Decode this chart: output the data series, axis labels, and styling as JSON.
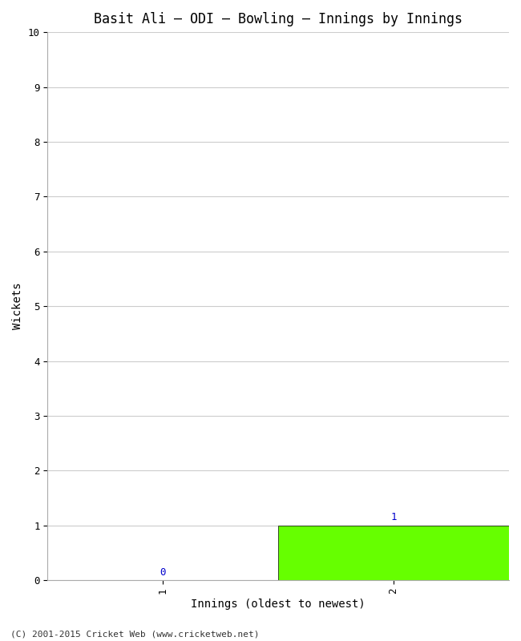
{
  "title": "Basit Ali – ODI – Bowling – Innings by Innings",
  "xlabel": "Innings (oldest to newest)",
  "ylabel": "Wickets",
  "categories": [
    "1",
    "2"
  ],
  "values": [
    0,
    1
  ],
  "bar_color": "#66ff00",
  "ylim": [
    0,
    10
  ],
  "yticks": [
    0,
    1,
    2,
    3,
    4,
    5,
    6,
    7,
    8,
    9,
    10
  ],
  "value_labels": [
    "0",
    "1"
  ],
  "value_label_color": "#0000cc",
  "background_color": "#ffffff",
  "grid_color": "#cccccc",
  "footer": "(C) 2001-2015 Cricket Web (www.cricketweb.net)",
  "title_fontsize": 12,
  "axis_fontsize": 10,
  "tick_fontsize": 9,
  "footer_fontsize": 8,
  "bar_width": 1.0,
  "xlim": [
    0.5,
    2.5
  ]
}
